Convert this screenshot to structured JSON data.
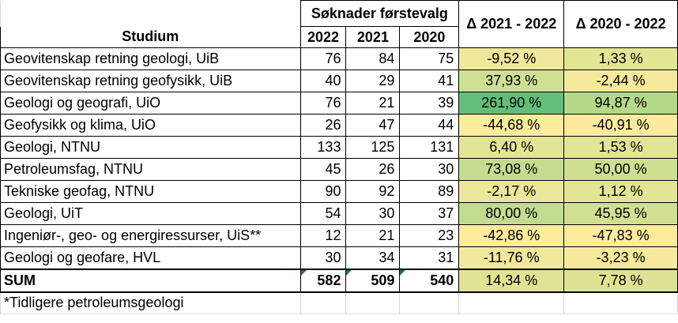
{
  "header": {
    "group_label": "Søknader førstevalg",
    "col_study": "Studium",
    "years": [
      "2022",
      "2021",
      "2020"
    ],
    "delta1": "Δ 2021 - 2022",
    "delta2": "Δ 2020 - 2022"
  },
  "rows": [
    {
      "name": "Geovitenskap retning geologi, UiB",
      "y2022": "76",
      "y2021": "84",
      "y2020": "75",
      "d1": "-9,52 %",
      "d2": "1,33 %",
      "c1": "#f0e89a",
      "c2": "#e2e594"
    },
    {
      "name": "Geovitenskap retning geofysikk, UiB",
      "y2022": "40",
      "y2021": "29",
      "y2020": "41",
      "d1": "37,93 %",
      "d2": "-2,44 %",
      "c1": "#cfe092",
      "c2": "#f6e99b"
    },
    {
      "name": "Geologi og geografi, UiO",
      "y2022": "76",
      "y2021": "21",
      "y2020": "39",
      "d1": "261,90 %",
      "d2": "94,87 %",
      "c1": "#63be7b",
      "c2": "#b5d98b"
    },
    {
      "name": "Geofysikk og klima, UiO",
      "y2022": "26",
      "y2021": "47",
      "y2020": "44",
      "d1": "-44,68 %",
      "d2": "-40,91 %",
      "c1": "#ffeb9c",
      "c2": "#fdea9c"
    },
    {
      "name": "Geologi, NTNU",
      "y2022": "133",
      "y2021": "125",
      "y2020": "131",
      "d1": "6,40 %",
      "d2": "1,53 %",
      "c1": "#e3e596",
      "c2": "#e2e594"
    },
    {
      "name": "Petroleumsfag, NTNU",
      "y2022": "45",
      "y2021": "26",
      "y2020": "30",
      "d1": "73,08 %",
      "d2": "50,00 %",
      "c1": "#c5dc8f",
      "c2": "#cde090"
    },
    {
      "name": "Tekniske geofag, NTNU",
      "y2022": "90",
      "y2021": "92",
      "y2020": "89",
      "d1": "-2,17 %",
      "d2": "1,12 %",
      "c1": "#eae79a",
      "c2": "#e3e595"
    },
    {
      "name": "Geologi, UiT",
      "y2022": "54",
      "y2021": "30",
      "y2020": "37",
      "d1": "80,00 %",
      "d2": "45,95 %",
      "c1": "#c3db8e",
      "c2": "#cfe091"
    },
    {
      "name": "Ingeniør-, geo- og energiressurser, UiS**",
      "y2022": "12",
      "y2021": "21",
      "y2020": "23",
      "d1": "-42,86 %",
      "d2": "-47,83 %",
      "c1": "#feeb9c",
      "c2": "#ffeb9c"
    },
    {
      "name": "Geologi og geofare, HVL",
      "y2022": "30",
      "y2021": "34",
      "y2020": "31",
      "d1": "-11,76 %",
      "d2": "-3,23 %",
      "c1": "#f2e89b",
      "c2": "#f8ea9c"
    }
  ],
  "sum": {
    "name": "SUM",
    "y2022": "582",
    "y2021": "509",
    "y2020": "540",
    "d1": "14,34 %",
    "d2": "7,78 %",
    "c1": "#dfe494",
    "c2": "#dee393"
  },
  "footnote": "*Tidligere petroleumsgeologi"
}
